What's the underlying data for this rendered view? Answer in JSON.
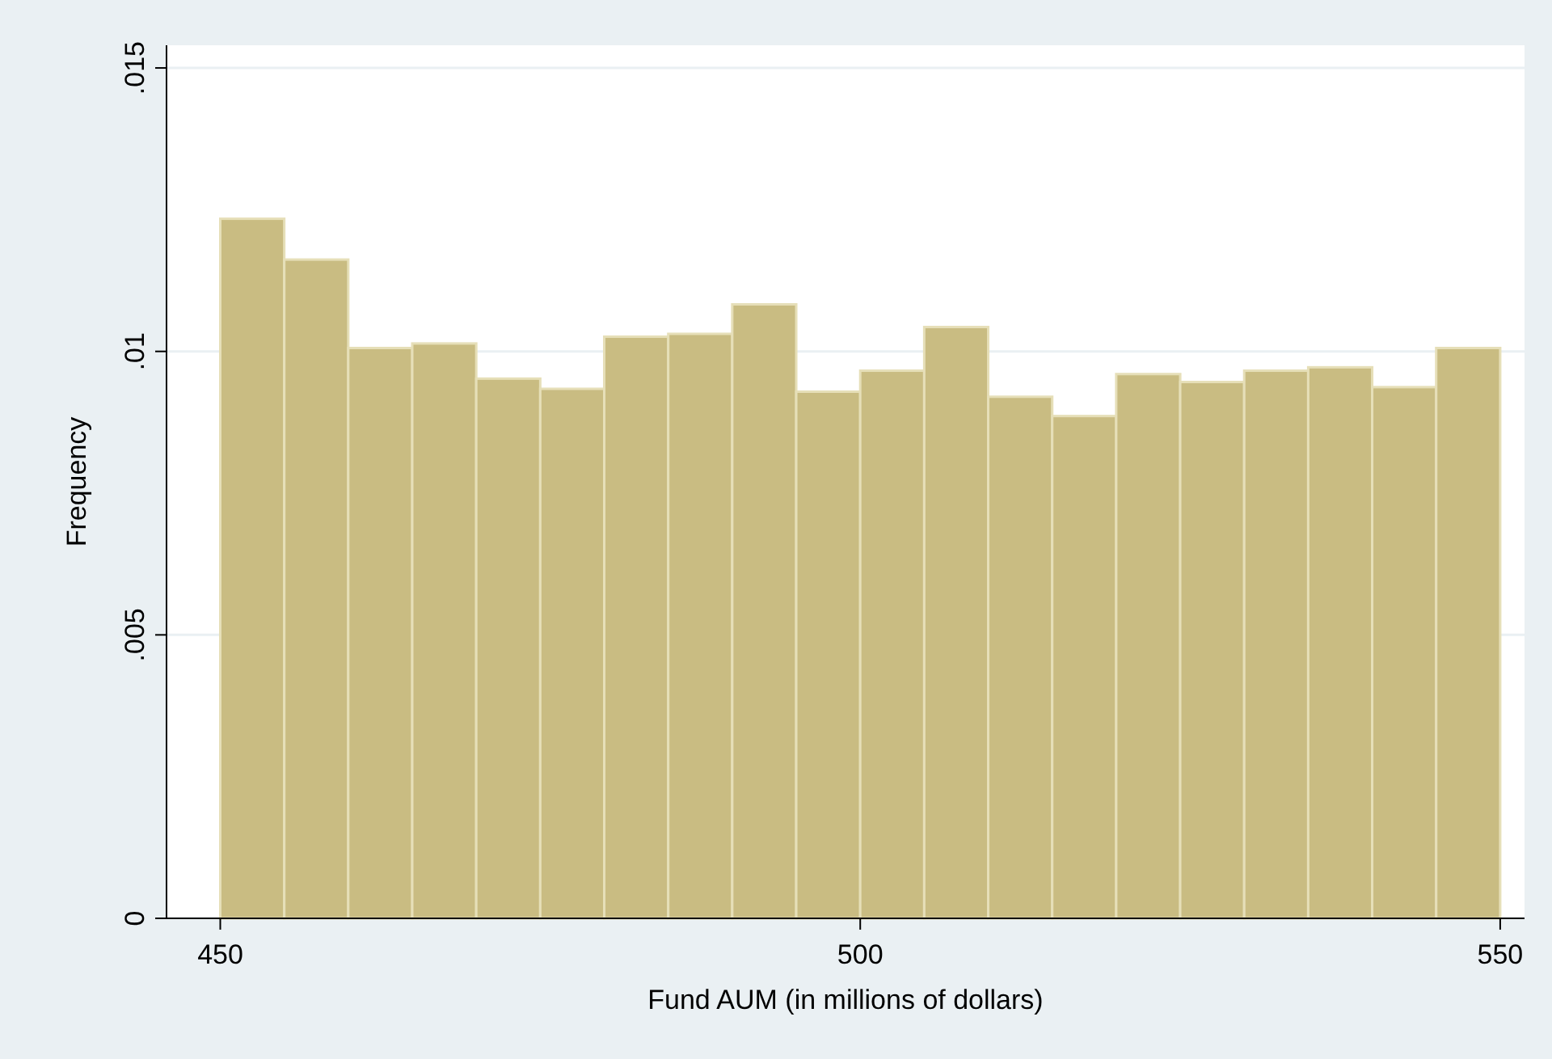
{
  "chart_data": {
    "type": "histogram",
    "xlabel": "Fund AUM (in millions of dollars)",
    "ylabel": "Frequency",
    "bins": [
      450,
      455,
      460,
      465,
      470,
      475,
      480,
      485,
      490,
      495,
      500,
      505,
      510,
      515,
      520,
      525,
      530,
      535,
      540,
      545,
      550
    ],
    "values": [
      0.01234,
      0.01162,
      0.01006,
      0.01014,
      0.00952,
      0.00934,
      0.01026,
      0.01031,
      0.01083,
      0.00929,
      0.00966,
      0.01043,
      0.0092,
      0.00886,
      0.0096,
      0.00946,
      0.00966,
      0.00972,
      0.00937,
      0.01006
    ],
    "color": "#c9bc82",
    "xlim": [
      445.8,
      551.9
    ],
    "xticks": [
      450,
      500,
      550
    ],
    "ylim": [
      0,
      0.0154
    ],
    "yticks": [
      0,
      {
        "value": 0.005,
        "label": ".005"
      },
      {
        "value": 0.01,
        "label": ".01"
      },
      {
        "value": 0.015,
        "label": ".015"
      }
    ],
    "grid": "y"
  }
}
